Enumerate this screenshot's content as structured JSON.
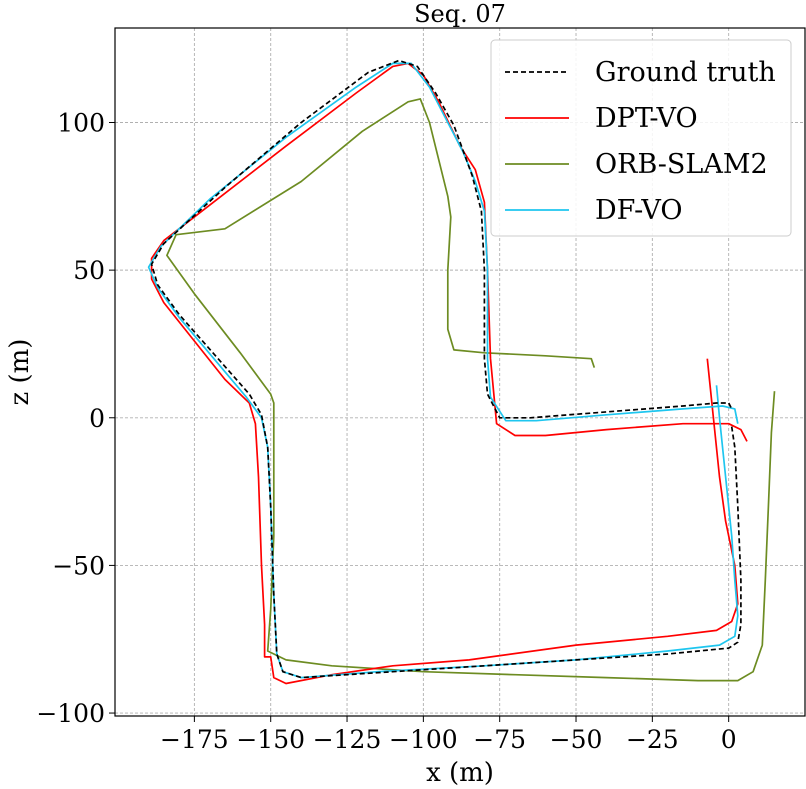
{
  "chart_data": {
    "type": "line",
    "title": "Seq. 07",
    "xlabel": "x (m)",
    "ylabel": "z (m)",
    "xlim": [
      -201,
      25
    ],
    "ylim": [
      -101,
      132
    ],
    "xticks": [
      -175,
      -150,
      -125,
      -100,
      -75,
      -50,
      -25,
      0
    ],
    "xtick_labels": [
      "−175",
      "−150",
      "−125",
      "−100",
      "−75",
      "−50",
      "−25",
      "0"
    ],
    "yticks": [
      -100,
      -50,
      0,
      50,
      100
    ],
    "ytick_labels": [
      "−100",
      "−50",
      "0",
      "50",
      "100"
    ],
    "grid": true,
    "legend_position": "top-right",
    "series": [
      {
        "name": "Ground truth",
        "color": "#000000",
        "dashed": true,
        "points": [
          [
            1,
            -3
          ],
          [
            2,
            -10
          ],
          [
            3,
            -30
          ],
          [
            4,
            -55
          ],
          [
            4,
            -70
          ],
          [
            3,
            -76
          ],
          [
            0,
            -78
          ],
          [
            -20,
            -80
          ],
          [
            -50,
            -82
          ],
          [
            -80,
            -84
          ],
          [
            -110,
            -86
          ],
          [
            -140,
            -88
          ],
          [
            -146,
            -86
          ],
          [
            -148,
            -80
          ],
          [
            -149,
            -60
          ],
          [
            -150,
            -30
          ],
          [
            -151,
            -10
          ],
          [
            -153,
            1
          ],
          [
            -157,
            8
          ],
          [
            -180,
            35
          ],
          [
            -187,
            45
          ],
          [
            -189,
            52
          ],
          [
            -185,
            59
          ],
          [
            -165,
            78
          ],
          [
            -140,
            100
          ],
          [
            -118,
            117
          ],
          [
            -108,
            121
          ],
          [
            -102,
            119
          ],
          [
            -96,
            110
          ],
          [
            -90,
            99
          ],
          [
            -84,
            82
          ],
          [
            -81,
            70
          ],
          [
            -80,
            50
          ],
          [
            -80,
            20
          ],
          [
            -79,
            8
          ],
          [
            -75,
            0
          ],
          [
            -65,
            0
          ],
          [
            -40,
            2
          ],
          [
            -15,
            4
          ],
          [
            -4,
            5
          ],
          [
            0,
            5
          ],
          [
            1,
            3
          ]
        ]
      },
      {
        "name": "DPT-VO",
        "color": "#ff0000",
        "dashed": false,
        "points": [
          [
            -7,
            20
          ],
          [
            -5,
            0
          ],
          [
            -3,
            -20
          ],
          [
            -1,
            -35
          ],
          [
            2,
            -50
          ],
          [
            3,
            -63
          ],
          [
            1,
            -69
          ],
          [
            -4,
            -72
          ],
          [
            -20,
            -74
          ],
          [
            -50,
            -77
          ],
          [
            -85,
            -82
          ],
          [
            -110,
            -84
          ],
          [
            -130,
            -87
          ],
          [
            -145,
            -90
          ],
          [
            -149,
            -88
          ],
          [
            -150,
            -81
          ],
          [
            -152,
            -81
          ],
          [
            -152,
            -70
          ],
          [
            -153,
            -50
          ],
          [
            -154,
            -20
          ],
          [
            -155,
            -2
          ],
          [
            -157,
            5
          ],
          [
            -165,
            13
          ],
          [
            -185,
            39
          ],
          [
            -189,
            47
          ],
          [
            -189,
            54
          ],
          [
            -185,
            60
          ],
          [
            -170,
            72
          ],
          [
            -145,
            92
          ],
          [
            -122,
            110
          ],
          [
            -110,
            119
          ],
          [
            -105,
            120
          ],
          [
            -100,
            116
          ],
          [
            -95,
            107
          ],
          [
            -88,
            92
          ],
          [
            -83,
            84
          ],
          [
            -80,
            73
          ],
          [
            -79,
            50
          ],
          [
            -78,
            20
          ],
          [
            -76,
            -2
          ],
          [
            -70,
            -6
          ],
          [
            -60,
            -6
          ],
          [
            -40,
            -4
          ],
          [
            -15,
            -2
          ],
          [
            0,
            -2
          ],
          [
            4,
            -4
          ],
          [
            6,
            -8
          ]
        ]
      },
      {
        "name": "ORB-SLAM2",
        "color": "#6d8c22",
        "dashed": false,
        "points": [
          [
            -44,
            17
          ],
          [
            -45,
            20
          ],
          [
            -60,
            21
          ],
          [
            -80,
            22
          ],
          [
            -90,
            23
          ],
          [
            -92,
            30
          ],
          [
            -92,
            50
          ],
          [
            -91,
            68
          ],
          [
            -92,
            75
          ],
          [
            -98,
            100
          ],
          [
            -101,
            108
          ],
          [
            -105,
            107
          ],
          [
            -120,
            97
          ],
          [
            -140,
            80
          ],
          [
            -165,
            64
          ],
          [
            -181,
            62
          ],
          [
            -184,
            55
          ],
          [
            -175,
            42
          ],
          [
            -160,
            22
          ],
          [
            -150,
            8
          ],
          [
            -149,
            5
          ],
          [
            -149,
            -10
          ],
          [
            -149,
            -40
          ],
          [
            -150,
            -65
          ],
          [
            -151,
            -79
          ],
          [
            -145,
            -82
          ],
          [
            -130,
            -84
          ],
          [
            -100,
            -86
          ],
          [
            -70,
            -87
          ],
          [
            -40,
            -88
          ],
          [
            -10,
            -89
          ],
          [
            3,
            -89
          ],
          [
            8,
            -86
          ],
          [
            11,
            -77
          ],
          [
            12,
            -55
          ],
          [
            13,
            -30
          ],
          [
            14,
            -5
          ],
          [
            15,
            9
          ]
        ]
      },
      {
        "name": "DF-VO",
        "color": "#1ec6ef",
        "dashed": false,
        "points": [
          [
            -4,
            11
          ],
          [
            -3,
            0
          ],
          [
            -1,
            -20
          ],
          [
            1,
            -40
          ],
          [
            2,
            -55
          ],
          [
            3,
            -67
          ],
          [
            2,
            -74
          ],
          [
            -3,
            -77
          ],
          [
            -20,
            -79
          ],
          [
            -50,
            -82
          ],
          [
            -80,
            -84
          ],
          [
            -115,
            -86
          ],
          [
            -140,
            -88
          ],
          [
            -146,
            -86
          ],
          [
            -148,
            -80
          ],
          [
            -149,
            -60
          ],
          [
            -150,
            -30
          ],
          [
            -151,
            -10
          ],
          [
            -153,
            0
          ],
          [
            -158,
            7
          ],
          [
            -180,
            34
          ],
          [
            -187,
            44
          ],
          [
            -190,
            51
          ],
          [
            -186,
            58
          ],
          [
            -170,
            74
          ],
          [
            -145,
            95
          ],
          [
            -122,
            112
          ],
          [
            -110,
            120
          ],
          [
            -104,
            120
          ],
          [
            -98,
            112
          ],
          [
            -92,
            100
          ],
          [
            -87,
            90
          ],
          [
            -83,
            80
          ],
          [
            -80,
            70
          ],
          [
            -79,
            50
          ],
          [
            -79,
            20
          ],
          [
            -78,
            7
          ],
          [
            -73,
            -1
          ],
          [
            -63,
            -1
          ],
          [
            -40,
            1
          ],
          [
            -15,
            3
          ],
          [
            -2,
            4
          ],
          [
            2,
            3
          ],
          [
            3,
            -2
          ]
        ]
      }
    ]
  }
}
